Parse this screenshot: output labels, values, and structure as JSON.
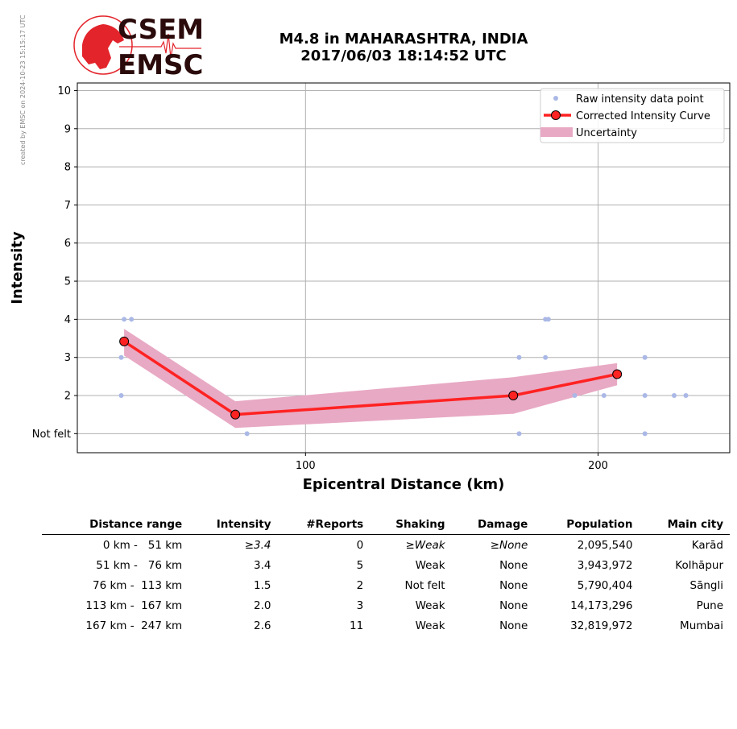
{
  "watermark": "created by EMSC on 2024-10-23 15:15:17 UTC",
  "logo": {
    "line1": "CSEM",
    "line2": "EMSC"
  },
  "header": {
    "title_line1": "M4.8 in MAHARASHTRA, INDIA",
    "title_line2": "2017/06/03 18:14:52 UTC"
  },
  "colors": {
    "raw_points": "#aab8e6",
    "curve": "#ff2222",
    "marker_fill": "#ff2222",
    "uncertainty": "#e8a9c4",
    "grid": "#b0b0b0",
    "logo_red": "#e3242b",
    "logo_dark": "#2a0a0a"
  },
  "chart_data": {
    "type": "line",
    "xlabel": "Epicentral Distance (km)",
    "ylabel": "Intensity",
    "xlim": [
      22,
      245
    ],
    "ylim": [
      0.5,
      10.2
    ],
    "xticks": [
      100,
      200
    ],
    "yticks": [
      {
        "value": 1,
        "label": "Not felt"
      },
      {
        "value": 2,
        "label": "2"
      },
      {
        "value": 3,
        "label": "3"
      },
      {
        "value": 4,
        "label": "4"
      },
      {
        "value": 5,
        "label": "5"
      },
      {
        "value": 6,
        "label": "6"
      },
      {
        "value": 7,
        "label": "7"
      },
      {
        "value": 8,
        "label": "8"
      },
      {
        "value": 9,
        "label": "9"
      },
      {
        "value": 10,
        "label": "10"
      }
    ],
    "grid": true,
    "legend_position": "top-right",
    "legend": [
      "Raw intensity data point",
      "Corrected Intensity Curve",
      "Uncertainty"
    ],
    "series": [
      {
        "name": "Raw intensity data point",
        "kind": "scatter",
        "points": [
          [
            38,
            4
          ],
          [
            40.5,
            4
          ],
          [
            37,
            3
          ],
          [
            37,
            2
          ],
          [
            80,
            1
          ],
          [
            173,
            3
          ],
          [
            173,
            1
          ],
          [
            182,
            4
          ],
          [
            183,
            4
          ],
          [
            182,
            3
          ],
          [
            192,
            2
          ],
          [
            202,
            2
          ],
          [
            216,
            3
          ],
          [
            216,
            2
          ],
          [
            216,
            1
          ],
          [
            226,
            2
          ],
          [
            230,
            2
          ]
        ]
      },
      {
        "name": "Corrected Intensity Curve",
        "kind": "line",
        "points": [
          [
            38,
            3.42
          ],
          [
            76,
            1.5
          ],
          [
            171,
            2.0
          ],
          [
            206.5,
            2.56
          ]
        ]
      },
      {
        "name": "Uncertainty",
        "kind": "band",
        "upper": [
          [
            38,
            3.75
          ],
          [
            76,
            1.85
          ],
          [
            171,
            2.48
          ],
          [
            206.5,
            2.85
          ]
        ],
        "lower": [
          [
            38,
            3.05
          ],
          [
            76,
            1.15
          ],
          [
            171,
            1.52
          ],
          [
            206.5,
            2.27
          ]
        ]
      }
    ]
  },
  "table": {
    "headers": [
      "Distance range",
      "Intensity",
      "#Reports",
      "Shaking",
      "Damage",
      "Population",
      "Main city"
    ],
    "rows": [
      {
        "range": "0 km -   51 km",
        "intensity": "≥3.4",
        "reports": "0",
        "shaking": "≥Weak",
        "damage": "≥None",
        "population": "2,095,540",
        "city": "Karād"
      },
      {
        "range": "51 km -   76 km",
        "intensity": "3.4",
        "reports": "5",
        "shaking": "Weak",
        "damage": "None",
        "population": "3,943,972",
        "city": "Kolhāpur"
      },
      {
        "range": "76 km -  113 km",
        "intensity": "1.5",
        "reports": "2",
        "shaking": "Not felt",
        "damage": "None",
        "population": "5,790,404",
        "city": "Sāngli"
      },
      {
        "range": "113 km -  167 km",
        "intensity": "2.0",
        "reports": "3",
        "shaking": "Weak",
        "damage": "None",
        "population": "14,173,296",
        "city": "Pune"
      },
      {
        "range": "167 km -  247 km",
        "intensity": "2.6",
        "reports": "11",
        "shaking": "Weak",
        "damage": "None",
        "population": "32,819,972",
        "city": "Mumbai"
      }
    ]
  }
}
